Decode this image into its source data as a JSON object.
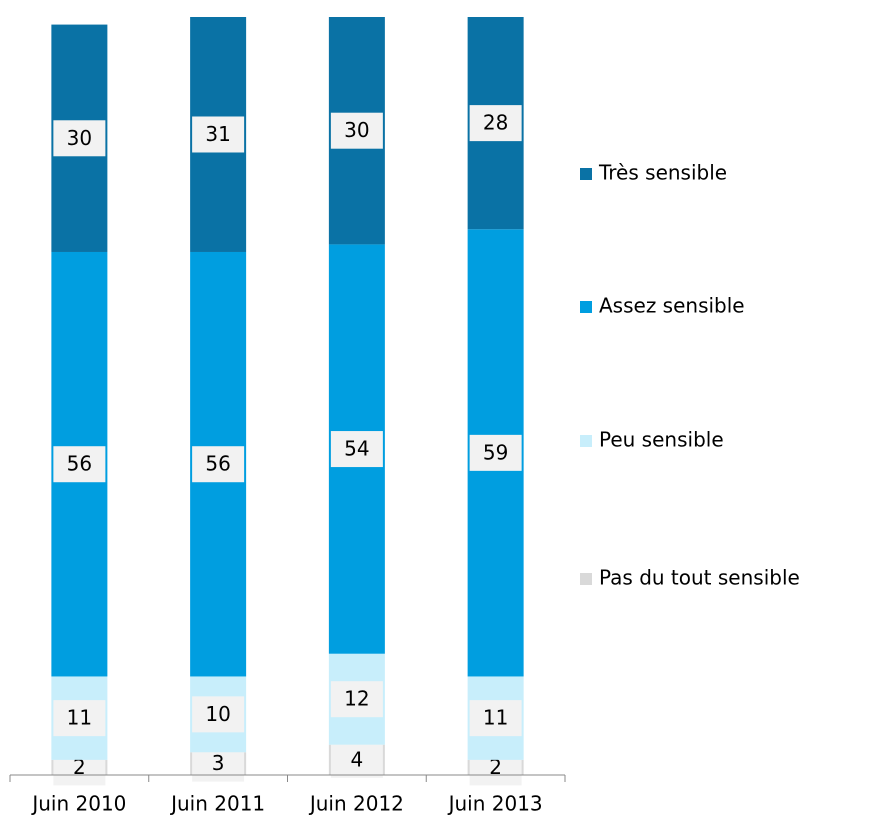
{
  "chart_data": {
    "type": "stacked_bar",
    "categories": [
      "Juin 2010",
      "Juin 2011",
      "Juin 2012",
      "Juin 2013"
    ],
    "series": [
      {
        "name": "Pas du tout sensible",
        "color": "#d9d9d9",
        "values": [
          2,
          3,
          4,
          2
        ]
      },
      {
        "name": "Peu sensible",
        "color": "#c8eefb",
        "values": [
          11,
          10,
          12,
          11
        ]
      },
      {
        "name": "Assez sensible",
        "color": "#009ee0",
        "values": [
          56,
          56,
          54,
          59
        ]
      },
      {
        "name": "Très sensible",
        "color": "#0a72a5",
        "values": [
          30,
          31,
          30,
          28
        ]
      }
    ],
    "ylim": [
      0,
      100
    ],
    "legend": "right"
  }
}
